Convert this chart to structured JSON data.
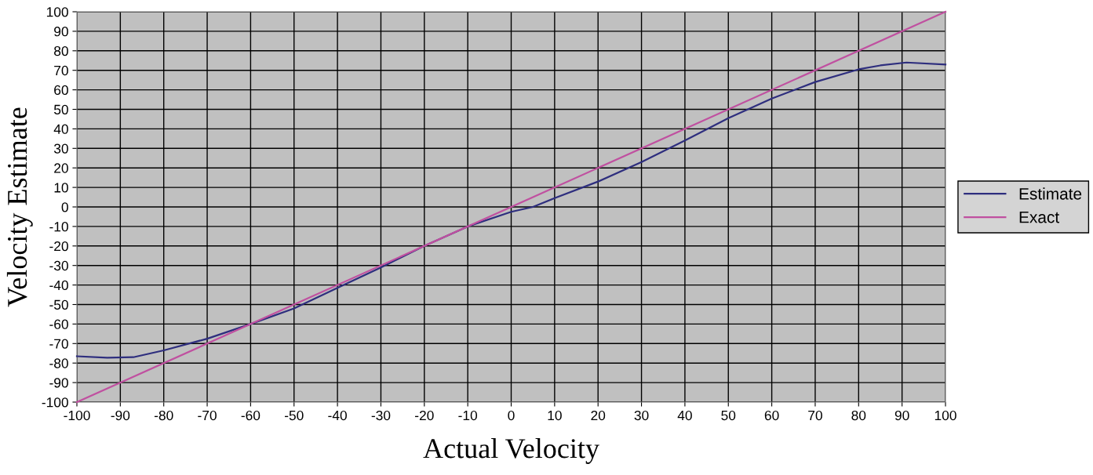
{
  "chart_data": {
    "type": "line",
    "xlabel": "Actual Velocity",
    "ylabel": "Velocity Estimate",
    "xlim": [
      -100,
      100
    ],
    "ylim": [
      -100,
      100
    ],
    "xticks": [
      -100,
      -90,
      -80,
      -70,
      -60,
      -50,
      -40,
      -30,
      -20,
      -10,
      0,
      10,
      20,
      30,
      40,
      50,
      60,
      70,
      80,
      90,
      100
    ],
    "yticks": [
      -100,
      -90,
      -80,
      -70,
      -60,
      -50,
      -40,
      -30,
      -20,
      -10,
      0,
      10,
      20,
      30,
      40,
      50,
      60,
      70,
      80,
      90,
      100
    ],
    "grid": true,
    "legend": "right",
    "marker": "none",
    "line_style": "solid",
    "series": [
      {
        "name": "Estimate",
        "color": "#2e2e7e",
        "x": [
          -100,
          -93,
          -87,
          -80,
          -70,
          -60,
          -50,
          -40,
          -30,
          -20,
          -10,
          0,
          5,
          10,
          20,
          30,
          40,
          50,
          60,
          70,
          80,
          85,
          91,
          100
        ],
        "values": [
          -76.5,
          -77.3,
          -77,
          -73.5,
          -67.5,
          -60,
          -52,
          -41.5,
          -31,
          -20,
          -10,
          -2.5,
          0,
          4.5,
          13,
          23,
          34,
          45.5,
          55.5,
          64,
          70.5,
          72.5,
          74,
          73
        ]
      },
      {
        "name": "Exact",
        "color": "#c050a0",
        "x": [
          -100,
          100
        ],
        "values": [
          -100,
          100
        ]
      }
    ]
  }
}
